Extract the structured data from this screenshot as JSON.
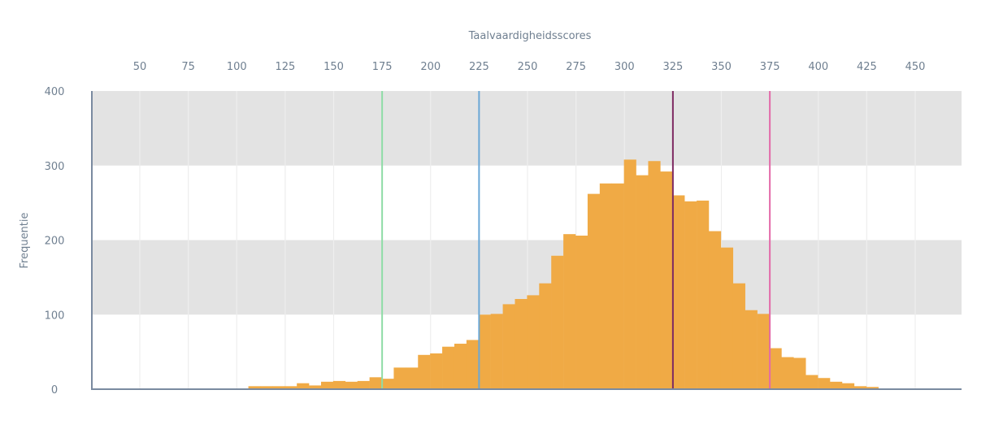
{
  "chart_data": {
    "type": "bar",
    "title": "",
    "xlabel": "Taalvaardigheidsscores",
    "ylabel": "Frequentie",
    "x_axis_position": "top",
    "xlim": [
      25,
      477
    ],
    "ylim": [
      0,
      400
    ],
    "x_ticks": [
      50,
      75,
      100,
      125,
      150,
      175,
      200,
      225,
      250,
      275,
      300,
      325,
      350,
      375,
      400,
      425,
      450
    ],
    "y_ticks": [
      0,
      100,
      200,
      300,
      400
    ],
    "grid": "vertical lines at x ticks; alternating grey horizontal bands",
    "bin_width": 6.25,
    "bins_start": 106,
    "values": [
      4,
      4,
      4,
      4,
      8,
      5,
      10,
      11,
      10,
      11,
      16,
      14,
      29,
      29,
      46,
      48,
      57,
      61,
      66,
      100,
      101,
      114,
      121,
      126,
      142,
      179,
      208,
      206,
      262,
      276,
      276,
      308,
      287,
      306,
      292,
      260,
      252,
      253,
      212,
      190,
      142,
      106,
      101,
      55,
      43,
      42,
      19,
      15,
      10,
      8,
      4,
      3,
      1
    ],
    "bar_color": "#f0aa45",
    "reference_lines": [
      {
        "x": 175,
        "color": "#8fdca6"
      },
      {
        "x": 225,
        "color": "#6aa7d6"
      },
      {
        "x": 325,
        "color": "#7e2a62"
      },
      {
        "x": 375,
        "color": "#e36aa8"
      }
    ]
  }
}
